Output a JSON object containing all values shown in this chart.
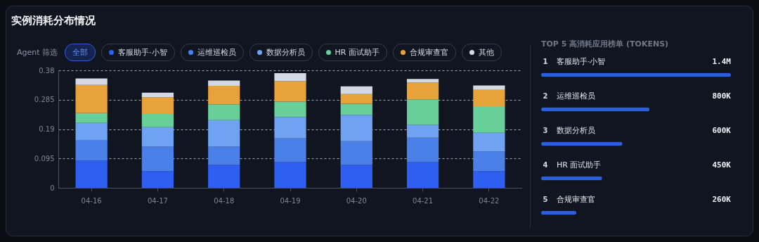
{
  "chart_data": [
    {
      "type": "bar",
      "title": "实例消耗分布情况",
      "legend_title": "Agent 筛选",
      "annotations": [
        "全部"
      ],
      "stacked": true,
      "legend": "top",
      "grid": "y",
      "categories": [
        "04-16",
        "04-17",
        "04-18",
        "04-19",
        "04-20",
        "04-21",
        "04-22"
      ],
      "series": [
        {
          "name": "客服助手·小智",
          "color": "#2f5ff0",
          "values": [
            0.088,
            0.054,
            0.074,
            0.083,
            0.074,
            0.083,
            0.054
          ]
        },
        {
          "name": "运维巡检员",
          "color": "#4a80e8",
          "values": [
            0.067,
            0.079,
            0.059,
            0.077,
            0.077,
            0.079,
            0.064
          ]
        },
        {
          "name": "数据分析员",
          "color": "#70a2f2",
          "values": [
            0.055,
            0.063,
            0.086,
            0.069,
            0.085,
            0.042,
            0.06
          ]
        },
        {
          "name": "HR 面试助手",
          "color": "#68cf9b",
          "values": [
            0.032,
            0.043,
            0.051,
            0.05,
            0.036,
            0.082,
            0.086
          ]
        },
        {
          "name": "合规审查官",
          "color": "#e8a23a",
          "values": [
            0.091,
            0.054,
            0.06,
            0.066,
            0.031,
            0.055,
            0.053
          ]
        },
        {
          "name": "其他",
          "color": "#d3d9e2",
          "values": [
            0.021,
            0.015,
            0.017,
            0.026,
            0.025,
            0.011,
            0.014
          ]
        }
      ],
      "ylim": [
        0,
        0.38
      ],
      "yticks": [
        0,
        0.095,
        0.19,
        0.285,
        0.38
      ]
    },
    {
      "type": "bar",
      "orientation": "horizontal",
      "title": "TOP 5 高消耗应用榜单 (TOKENS)",
      "categories": [
        "客服助手·小智",
        "运维巡检员",
        "数据分析员",
        "HR 面试助手",
        "合规审查官"
      ],
      "values": [
        1400000,
        800000,
        600000,
        450000,
        260000
      ],
      "color": "#2b5fe0",
      "value_labels": [
        "1.4M",
        "800K",
        "600K",
        "450K",
        "260K"
      ],
      "annotations": [
        {
          "text": "1",
          "y": "客服助手·小智"
        },
        {
          "text": "2",
          "y": "运维巡检员"
        },
        {
          "text": "3",
          "y": "数据分析员"
        },
        {
          "text": "4",
          "y": "HR 面试助手"
        },
        {
          "text": "5",
          "y": "合规审查官"
        }
      ]
    }
  ]
}
